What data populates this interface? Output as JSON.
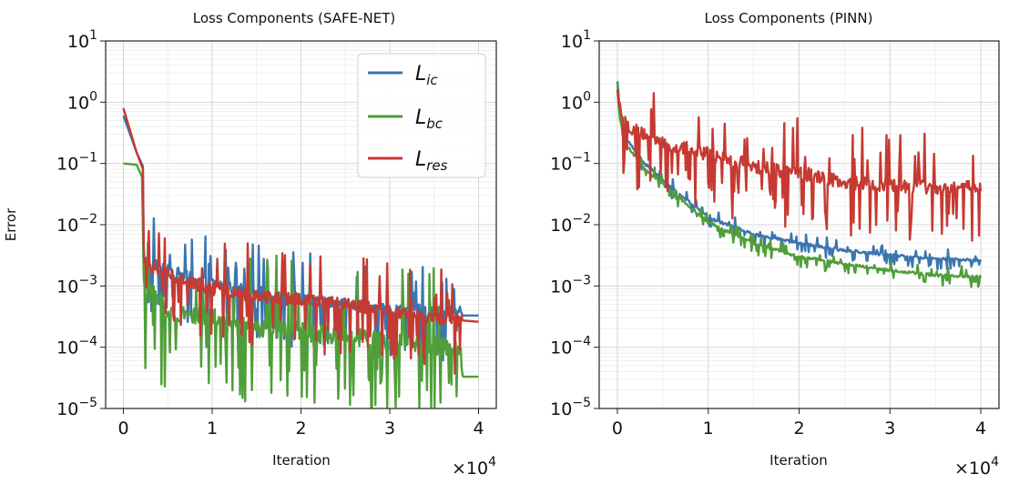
{
  "figure": {
    "ylabel": "Error",
    "xlabel": "Iteration",
    "x_multiplier": "×10",
    "x_multiplier_exp": "4",
    "ytick_base": "10"
  },
  "chart_data": [
    {
      "type": "line",
      "title": "Loss Components (SAFE-NET)",
      "xlabel": "Iteration",
      "ylabel": "Error",
      "yscale": "log",
      "xlim": [
        -2000,
        42000
      ],
      "ylim": [
        1e-05,
        10
      ],
      "x_ticks": [
        0,
        1,
        2,
        3,
        4
      ],
      "y_tick_exponents": [
        "1",
        "0",
        "−1",
        "−2",
        "−3",
        "−4",
        "−5"
      ],
      "legend": {
        "position": "top-right",
        "entries": [
          {
            "name": "ic",
            "color": "#3b75af"
          },
          {
            "name": "bc",
            "color": "#4f9e39"
          },
          {
            "name": "res",
            "color": "#c53a32"
          }
        ]
      },
      "series": [
        {
          "name": "L_ic",
          "color": "#3b75af",
          "noise": 0.55,
          "points": [
            [
              0,
              0.6
            ],
            [
              1500,
              0.15
            ],
            [
              2200,
              0.09
            ],
            [
              2300,
              0.0025
            ],
            [
              5000,
              0.0018
            ],
            [
              10000,
              0.0011
            ],
            [
              15000,
              0.0008
            ],
            [
              20000,
              0.0006
            ],
            [
              25000,
              0.0005
            ],
            [
              30000,
              0.0004
            ],
            [
              38000,
              0.0004
            ],
            [
              38200,
              0.00033
            ],
            [
              40000,
              0.00033
            ]
          ]
        },
        {
          "name": "L_bc",
          "color": "#4f9e39",
          "noise": 0.9,
          "points": [
            [
              0,
              0.1
            ],
            [
              1500,
              0.095
            ],
            [
              2100,
              0.06
            ],
            [
              2300,
              0.001
            ],
            [
              5000,
              0.0004
            ],
            [
              10000,
              0.0003
            ],
            [
              15000,
              0.0002
            ],
            [
              20000,
              0.00018
            ],
            [
              25000,
              0.00015
            ],
            [
              30000,
              0.00012
            ],
            [
              38000,
              0.0001
            ],
            [
              38200,
              3.3e-05
            ],
            [
              40000,
              3.3e-05
            ]
          ]
        },
        {
          "name": "L_res",
          "color": "#c53a32",
          "noise": 0.6,
          "points": [
            [
              0,
              0.8
            ],
            [
              1500,
              0.15
            ],
            [
              2200,
              0.08
            ],
            [
              2300,
              0.0025
            ],
            [
              5000,
              0.0015
            ],
            [
              10000,
              0.0009
            ],
            [
              15000,
              0.0007
            ],
            [
              20000,
              0.0006
            ],
            [
              25000,
              0.0005
            ],
            [
              30000,
              0.0004
            ],
            [
              35000,
              0.0003
            ],
            [
              40000,
              0.00026
            ]
          ]
        }
      ]
    },
    {
      "type": "line",
      "title": "Loss Components (PINN)",
      "xlabel": "Iteration",
      "yscale": "log",
      "xlim": [
        -2000,
        42000
      ],
      "ylim": [
        1e-05,
        10
      ],
      "x_ticks": [
        0,
        1,
        2,
        3,
        4
      ],
      "y_tick_exponents": [
        "1",
        "0",
        "−1",
        "−2",
        "−3",
        "−4",
        "−5"
      ],
      "series": [
        {
          "name": "L_ic",
          "color": "#3b75af",
          "noise": 0.12,
          "points": [
            [
              0,
              2.3
            ],
            [
              300,
              0.6
            ],
            [
              1000,
              0.25
            ],
            [
              3000,
              0.1
            ],
            [
              6000,
              0.04
            ],
            [
              10000,
              0.013
            ],
            [
              15000,
              0.007
            ],
            [
              20000,
              0.005
            ],
            [
              25000,
              0.0038
            ],
            [
              30000,
              0.0032
            ],
            [
              35000,
              0.0028
            ],
            [
              40000,
              0.0026
            ]
          ]
        },
        {
          "name": "L_bc",
          "color": "#4f9e39",
          "noise": 0.12,
          "points": [
            [
              0,
              2.0
            ],
            [
              300,
              0.5
            ],
            [
              1000,
              0.2
            ],
            [
              3000,
              0.08
            ],
            [
              6000,
              0.035
            ],
            [
              10000,
              0.011
            ],
            [
              15000,
              0.005
            ],
            [
              20000,
              0.003
            ],
            [
              25000,
              0.0023
            ],
            [
              30000,
              0.0018
            ],
            [
              35000,
              0.0015
            ],
            [
              40000,
              0.0014
            ]
          ]
        },
        {
          "name": "L_res",
          "color": "#c53a32",
          "noise": 0.65,
          "points": [
            [
              0,
              1.5
            ],
            [
              500,
              0.5
            ],
            [
              2000,
              0.35
            ],
            [
              5000,
              0.22
            ],
            [
              10000,
              0.14
            ],
            [
              15000,
              0.09
            ],
            [
              20000,
              0.07
            ],
            [
              25000,
              0.05
            ],
            [
              30000,
              0.045
            ],
            [
              35000,
              0.04
            ],
            [
              40000,
              0.04
            ]
          ]
        }
      ]
    }
  ]
}
